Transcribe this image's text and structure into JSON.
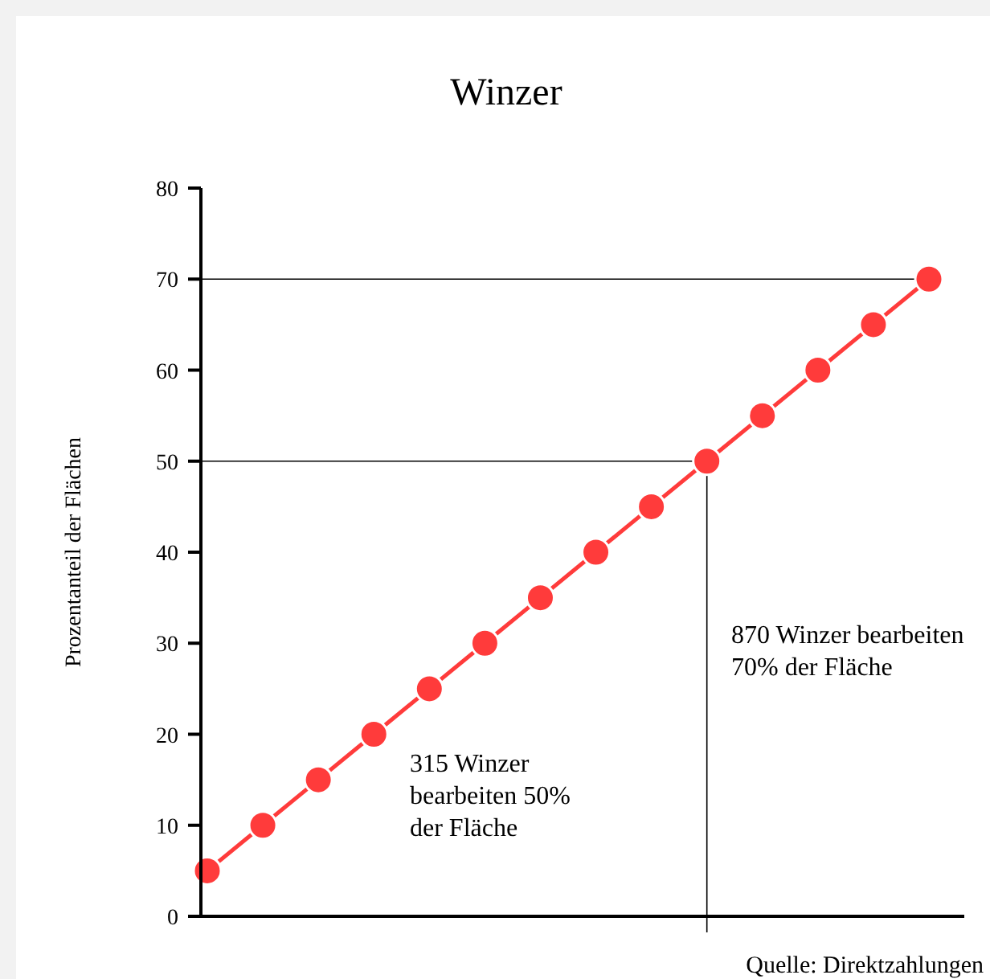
{
  "chart_data": {
    "type": "line",
    "title": "Winzer",
    "ylabel": "Prozentanteil der Flächen",
    "categories": [
      null,
      null,
      null,
      null,
      null,
      null,
      null,
      null,
      null,
      null,
      null,
      null,
      null,
      null
    ],
    "series": [
      {
        "color": "#ff3b3b",
        "values": [
          5,
          10,
          15,
          20,
          25,
          30,
          35,
          40,
          45,
          50,
          55,
          60,
          65,
          70
        ]
      }
    ],
    "ylim": [
      0,
      80
    ],
    "yticks": [
      0,
      10,
      20,
      30,
      40,
      50,
      60,
      70,
      80
    ],
    "ref_lines": [
      {
        "axis": "y",
        "value": 70,
        "color": "#000000"
      },
      {
        "axis": "y",
        "value": 50,
        "color": "#000000"
      }
    ],
    "annotations": [
      "315 Winzer bearbeiten 50% der Fläche",
      "870 Winzer bearbeiten 70% der Fläche",
      "Quelle: Direktzahlungen"
    ],
    "marker": "circle",
    "line_style": "solid"
  }
}
